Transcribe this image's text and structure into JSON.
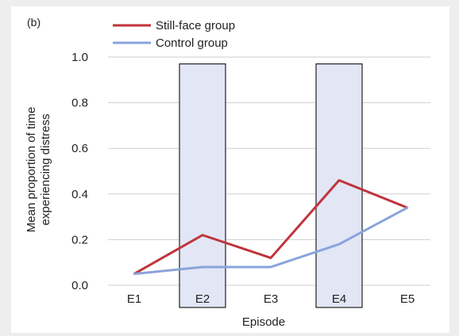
{
  "chart_data": {
    "type": "line",
    "panel_label": "(b)",
    "title": "",
    "xlabel": "Episode",
    "ylabel": [
      "Mean proportion of time",
      "experiencing distress"
    ],
    "categories": [
      "E1",
      "E2",
      "E3",
      "E4",
      "E5"
    ],
    "ylim": [
      0,
      1.0
    ],
    "yticks": [
      "0.0",
      "0.2",
      "0.4",
      "0.6",
      "0.8",
      "1.0"
    ],
    "grid": true,
    "legend_position": "top",
    "highlighted_episodes": [
      "E2",
      "E4"
    ],
    "series": [
      {
        "name": "Still-face group",
        "color": "#c0343b",
        "values": [
          0.05,
          0.22,
          0.12,
          0.46,
          0.34
        ]
      },
      {
        "name": "Control group",
        "color": "#8aa4db",
        "values": [
          0.05,
          0.08,
          0.08,
          0.18,
          0.34
        ]
      }
    ],
    "highlight_fill": "#e2e6f5"
  }
}
